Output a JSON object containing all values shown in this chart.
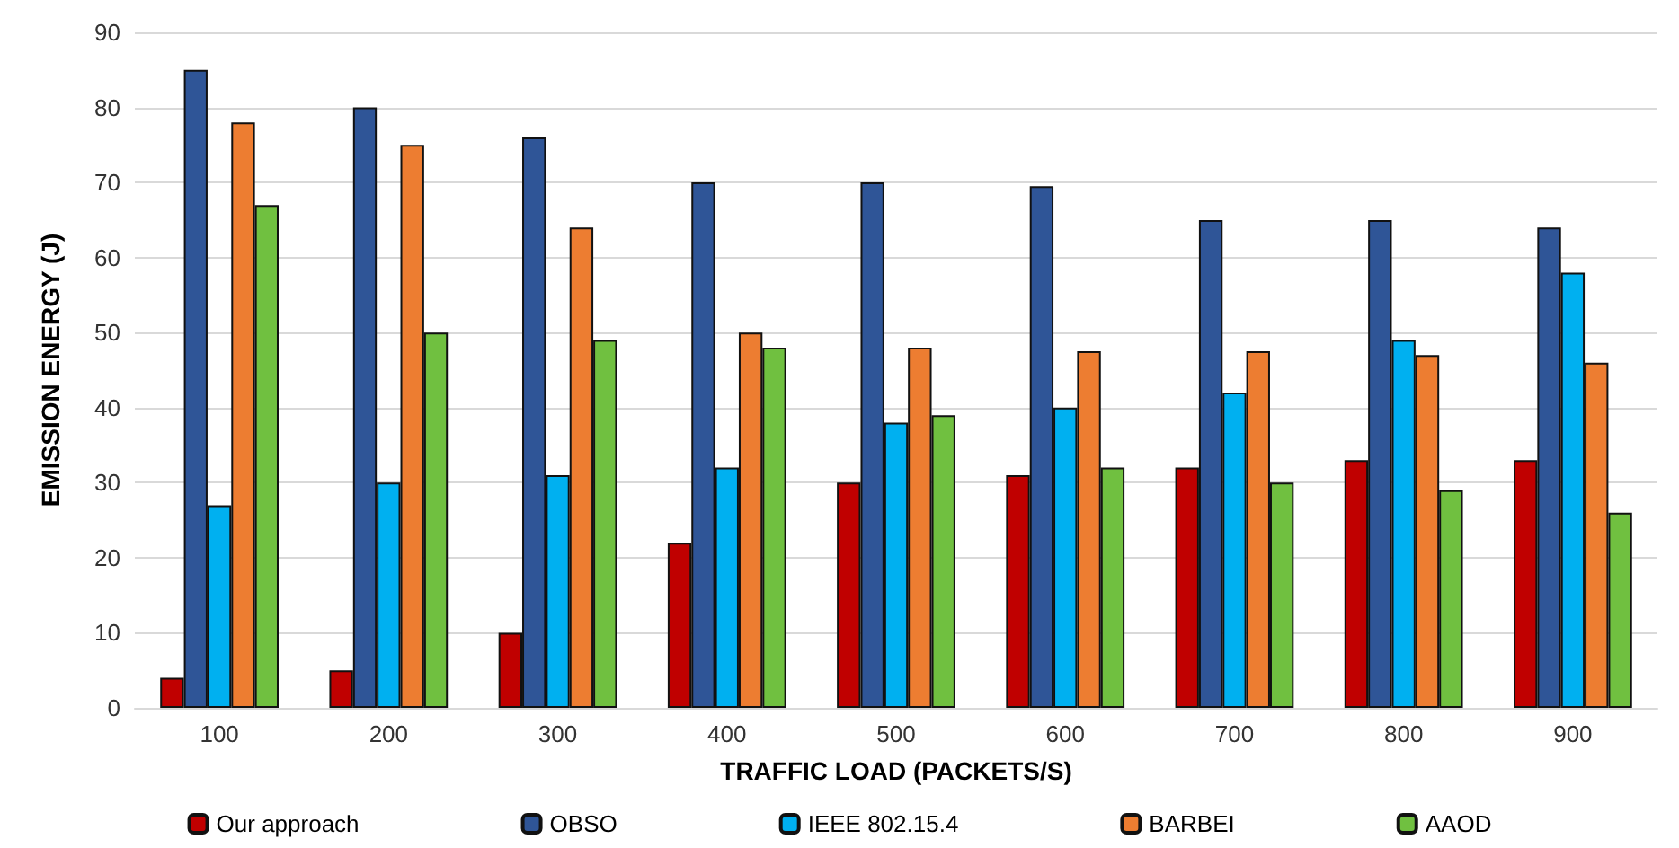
{
  "chart_data": {
    "type": "bar",
    "xlabel": "TRAFFIC LOAD (PACKETS/S)",
    "ylabel": "EMISSION ENERGY (J)",
    "categories": [
      "100",
      "200",
      "300",
      "400",
      "500",
      "600",
      "700",
      "800",
      "900"
    ],
    "series": [
      {
        "name": "Our approach",
        "color": "#c00000",
        "values": [
          4,
          5,
          10,
          22,
          30,
          31,
          32,
          33,
          33
        ]
      },
      {
        "name": "OBSO",
        "color": "#2f5597",
        "values": [
          85,
          80,
          76,
          70,
          70,
          69.5,
          65,
          65,
          64
        ]
      },
      {
        "name": "IEEE 802.15.4",
        "color": "#00b0f0",
        "values": [
          27,
          30,
          31,
          32,
          38,
          40,
          42,
          49,
          58
        ]
      },
      {
        "name": "BARBEI",
        "color": "#ed7d31",
        "values": [
          78,
          75,
          64,
          50,
          48,
          47.5,
          47.5,
          47,
          46
        ]
      },
      {
        "name": "AAOD",
        "color": "#70c040",
        "values": [
          67,
          50,
          49,
          48,
          39,
          32,
          30,
          29,
          26
        ]
      }
    ],
    "ylim": [
      0,
      90
    ],
    "yticks": [
      0,
      10,
      20,
      30,
      40,
      50,
      60,
      70,
      80,
      90
    ],
    "grid": "y",
    "legend": "bottom"
  }
}
